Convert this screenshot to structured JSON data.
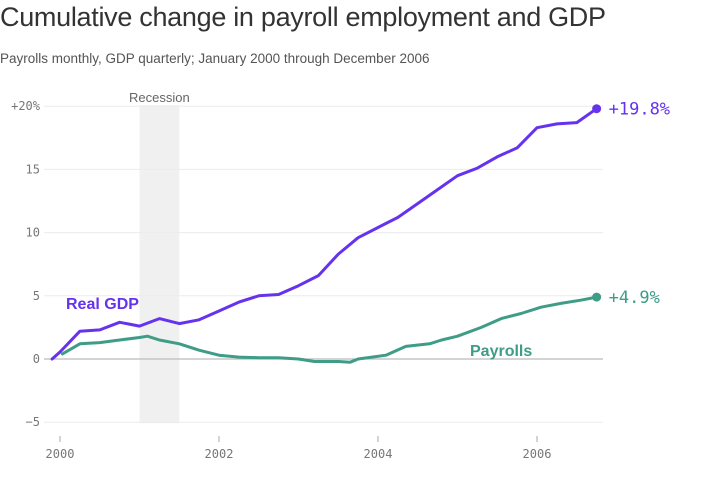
{
  "title": "Cumulative change in payroll employment and GDP",
  "subtitle": "Payrolls monthly, GDP quarterly; January 2000 through December 2006",
  "chart_data": {
    "type": "line",
    "title": "Cumulative change in payroll employment and GDP",
    "subtitle": "Payrolls monthly, GDP quarterly; January 2000 through December 2006",
    "ylim": [
      -5,
      20
    ],
    "xlim": [
      1999.9,
      2006.75
    ],
    "y_ticks": [
      {
        "value": 20,
        "label": "+20%"
      },
      {
        "value": 15,
        "label": "15"
      },
      {
        "value": 10,
        "label": "10"
      },
      {
        "value": 5,
        "label": "5"
      },
      {
        "value": 0,
        "label": "0"
      },
      {
        "value": -5,
        "label": "−5"
      }
    ],
    "x_ticks": [
      {
        "value": 2000,
        "label": "2000"
      },
      {
        "value": 2002,
        "label": "2002"
      },
      {
        "value": 2004,
        "label": "2004"
      },
      {
        "value": 2006,
        "label": "2006"
      }
    ],
    "grid": true,
    "shaded_regions": [
      {
        "label": "Recession",
        "start": 2001.0,
        "end": 2001.5
      }
    ],
    "series": [
      {
        "name": "Real GDP",
        "color": "#6533ee",
        "end_label": "+19.8%",
        "x": [
          1999.9,
          2000.0,
          2000.25,
          2000.5,
          2000.75,
          2001.0,
          2001.25,
          2001.5,
          2001.75,
          2002.0,
          2002.25,
          2002.5,
          2002.75,
          2003.0,
          2003.25,
          2003.5,
          2003.75,
          2004.0,
          2004.25,
          2004.5,
          2004.75,
          2005.0,
          2005.25,
          2005.5,
          2005.75,
          2006.0,
          2006.25,
          2006.5,
          2006.75
        ],
        "y": [
          0,
          0.55,
          2.2,
          2.3,
          2.9,
          2.6,
          3.2,
          2.8,
          3.1,
          3.8,
          4.5,
          5.0,
          5.1,
          5.8,
          6.6,
          8.3,
          9.6,
          10.4,
          11.2,
          12.3,
          13.4,
          14.5,
          15.1,
          16.0,
          16.7,
          18.3,
          18.6,
          18.7,
          19.8
        ]
      },
      {
        "name": "Payrolls",
        "color": "#3e9c87",
        "end_label": "+4.9%",
        "x": [
          2000.03,
          2000.25,
          2000.5,
          2000.75,
          2001.0,
          2001.1,
          2001.25,
          2001.5,
          2001.75,
          2002.0,
          2002.25,
          2002.5,
          2002.75,
          2003.0,
          2003.2,
          2003.5,
          2003.65,
          2003.75,
          2004.1,
          2004.35,
          2004.65,
          2004.8,
          2005.0,
          2005.3,
          2005.55,
          2005.8,
          2006.05,
          2006.3,
          2006.55,
          2006.75
        ],
        "y": [
          0.4,
          1.2,
          1.3,
          1.5,
          1.7,
          1.8,
          1.5,
          1.2,
          0.7,
          0.3,
          0.15,
          0.1,
          0.1,
          0.0,
          -0.2,
          -0.2,
          -0.25,
          0.0,
          0.3,
          1.0,
          1.2,
          1.5,
          1.8,
          2.5,
          3.2,
          3.6,
          4.1,
          4.4,
          4.65,
          4.9
        ]
      }
    ]
  }
}
